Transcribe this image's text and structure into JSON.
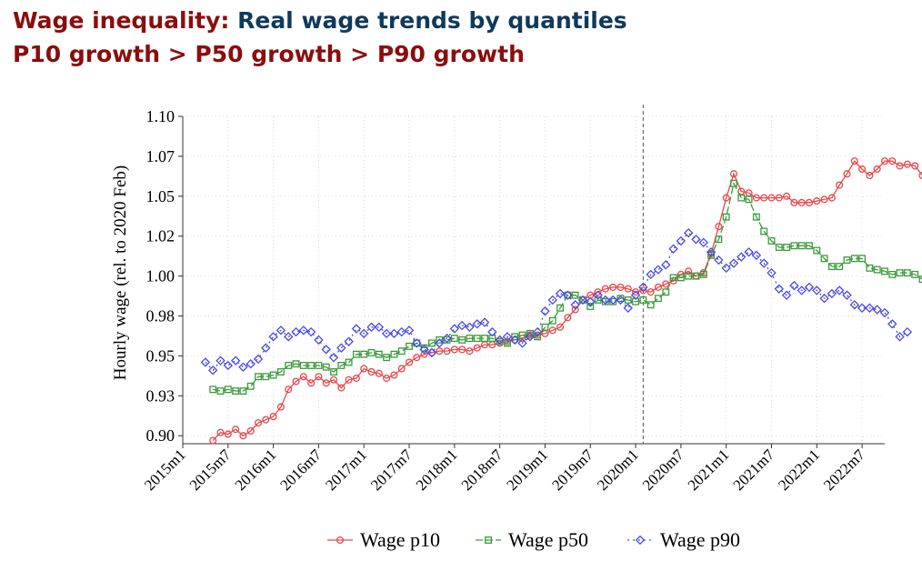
{
  "title": {
    "part1": "Wage inequality:",
    "part2": "Real wage trends by quantiles",
    "line2": "P10 growth > P50 growth > P90 growth"
  },
  "colors": {
    "p10": "#e8474b",
    "p50": "#3a9a3a",
    "p90": "#4a4ae6",
    "title_red": "#8b0d0d",
    "title_navy": "#0f3a5c"
  },
  "chart_data": {
    "type": "line",
    "ylabel": "Hourly wage (rel. to 2020 Feb)",
    "xlabel": "",
    "ylim": [
      0.895,
      1.1
    ],
    "y_ticks": [
      0.9,
      0.925,
      0.95,
      0.975,
      1.0,
      1.025,
      1.05,
      1.075,
      1.1
    ],
    "y_tick_labels": [
      "0.90",
      "0.93",
      "0.95",
      "0.98",
      "1.00",
      "1.02",
      "1.05",
      "1.07",
      "1.10"
    ],
    "x_ticks": [
      "2015m1",
      "2015m7",
      "2016m1",
      "2016m7",
      "2017m1",
      "2017m7",
      "2018m1",
      "2018m7",
      "2019m1",
      "2019m7",
      "2020m1",
      "2020m7",
      "2021m1",
      "2021m7",
      "2022m1",
      "2022m7"
    ],
    "x_start": "2015m1",
    "x_end": "2022m10",
    "vertical_line_at": "2020m2",
    "grid": true,
    "legend_position": "bottom",
    "series": [
      {
        "name": "Wage p10",
        "marker": "circle",
        "start": "2015m5",
        "values": [
          0.897,
          0.902,
          0.901,
          0.904,
          0.9,
          0.903,
          0.908,
          0.91,
          0.912,
          0.918,
          0.929,
          0.934,
          0.937,
          0.933,
          0.937,
          0.933,
          0.935,
          0.93,
          0.935,
          0.936,
          0.942,
          0.94,
          0.939,
          0.936,
          0.938,
          0.942,
          0.946,
          0.949,
          0.951,
          0.952,
          0.953,
          0.953,
          0.954,
          0.954,
          0.953,
          0.955,
          0.957,
          0.957,
          0.958,
          0.959,
          0.96,
          0.961,
          0.963,
          0.963,
          0.964,
          0.966,
          0.968,
          0.974,
          0.979,
          0.985,
          0.988,
          0.99,
          0.992,
          0.993,
          0.993,
          0.992,
          0.99,
          0.991,
          0.99,
          0.993,
          0.995,
          0.997,
          1.001,
          1.003,
          1.0,
          1.002,
          1.014,
          1.031,
          1.049,
          1.064,
          1.053,
          1.052,
          1.049,
          1.049,
          1.049,
          1.049,
          1.05,
          1.046,
          1.046,
          1.046,
          1.047,
          1.048,
          1.049,
          1.057,
          1.064,
          1.072,
          1.067,
          1.063,
          1.067,
          1.072,
          1.072,
          1.069,
          1.07,
          1.069,
          1.063,
          1.058,
          1.066
        ]
      },
      {
        "name": "Wage p50",
        "marker": "square",
        "start": "2015m5",
        "values": [
          0.929,
          0.928,
          0.929,
          0.928,
          0.928,
          0.931,
          0.937,
          0.937,
          0.938,
          0.94,
          0.944,
          0.945,
          0.944,
          0.944,
          0.944,
          0.943,
          0.94,
          0.944,
          0.946,
          0.951,
          0.951,
          0.952,
          0.951,
          0.949,
          0.951,
          0.953,
          0.956,
          0.958,
          0.955,
          0.958,
          0.96,
          0.96,
          0.961,
          0.96,
          0.961,
          0.961,
          0.961,
          0.961,
          0.959,
          0.958,
          0.962,
          0.963,
          0.964,
          0.962,
          0.968,
          0.972,
          0.98,
          0.988,
          0.988,
          0.985,
          0.981,
          0.985,
          0.984,
          0.984,
          0.986,
          0.985,
          0.984,
          0.985,
          0.982,
          0.986,
          0.99,
          0.999,
          0.999,
          1.0,
          1.0,
          1.001,
          1.013,
          1.023,
          1.037,
          1.058,
          1.049,
          1.048,
          1.037,
          1.028,
          1.022,
          1.018,
          1.018,
          1.019,
          1.019,
          1.019,
          1.016,
          1.011,
          1.006,
          1.006,
          1.01,
          1.011,
          1.011,
          1.005,
          1.004,
          1.003,
          1.001,
          1.002,
          1.002,
          1.001,
          0.998,
          0.992,
          0.998
        ]
      },
      {
        "name": "Wage p90",
        "marker": "diamond",
        "start": "2015m4",
        "values": [
          0.946,
          0.941,
          0.947,
          0.944,
          0.947,
          0.943,
          0.945,
          0.948,
          0.955,
          0.962,
          0.966,
          0.962,
          0.965,
          0.966,
          0.965,
          0.96,
          0.954,
          0.949,
          0.955,
          0.959,
          0.967,
          0.964,
          0.968,
          0.968,
          0.964,
          0.964,
          0.965,
          0.966,
          0.958,
          0.954,
          0.952,
          0.958,
          0.961,
          0.967,
          0.969,
          0.968,
          0.97,
          0.971,
          0.965,
          0.96,
          0.962,
          0.96,
          0.958,
          0.962,
          0.965,
          0.978,
          0.985,
          0.989,
          0.988,
          0.982,
          0.985,
          0.984,
          0.988,
          0.985,
          0.985,
          0.985,
          0.98,
          0.988,
          0.993,
          1.001,
          1.004,
          1.007,
          1.017,
          1.022,
          1.027,
          1.023,
          1.021,
          1.015,
          1.01,
          1.005,
          1.008,
          1.012,
          1.015,
          1.013,
          1.008,
          1.002,
          0.992,
          0.988,
          0.994,
          0.991,
          0.993,
          0.991,
          0.986,
          0.989,
          0.991,
          0.988,
          0.982,
          0.98,
          0.98,
          0.979,
          0.977,
          0.97,
          0.962,
          0.965
        ]
      }
    ]
  }
}
